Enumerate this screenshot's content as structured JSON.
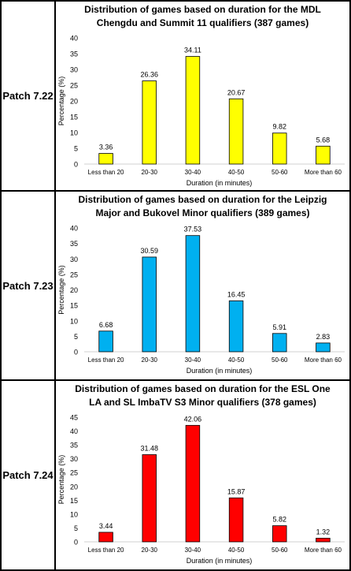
{
  "rows": [
    {
      "patch_label": "Patch 7.22",
      "chart_data": {
        "type": "bar",
        "title_line1": "Distribution of games based on duration for the MDL",
        "title_line2": "Chengdu and Summit 11 qualifiers (387 games)",
        "xlabel": "Duration (in minutes)",
        "ylabel": "Percentage (%)",
        "categories": [
          "Less than 20",
          "20-30",
          "30-40",
          "40-50",
          "50-60",
          "More than 60"
        ],
        "values": [
          3.36,
          26.36,
          34.11,
          20.67,
          9.82,
          5.68
        ],
        "value_labels": [
          "3.36",
          "26.36",
          "34.11",
          "20.67",
          "9.82",
          "5.68"
        ],
        "ylim": [
          0,
          40
        ],
        "yticks": [
          "0",
          "5",
          "10",
          "15",
          "20",
          "25",
          "30",
          "35",
          "40"
        ],
        "grid": false,
        "legend": "none",
        "bar_color": "#ffff00"
      }
    },
    {
      "patch_label": "Patch 7.23",
      "chart_data": {
        "type": "bar",
        "title_line1": "Distribution of games based on duration for the Leipzig",
        "title_line2": "Major and Bukovel Minor qualifiers (389 games)",
        "xlabel": "Duration (in minutes)",
        "ylabel": "Percentage (%)",
        "categories": [
          "Less than 20",
          "20-30",
          "30-40",
          "40-50",
          "50-60",
          "More than 60"
        ],
        "values": [
          6.68,
          30.59,
          37.53,
          16.45,
          5.91,
          2.83
        ],
        "value_labels": [
          "6.68",
          "30.59",
          "37.53",
          "16.45",
          "5.91",
          "2.83"
        ],
        "ylim": [
          0,
          40
        ],
        "yticks": [
          "0",
          "5",
          "10",
          "15",
          "20",
          "25",
          "30",
          "35",
          "40"
        ],
        "grid": false,
        "legend": "none",
        "bar_color": "#00b0f0"
      }
    },
    {
      "patch_label": "Patch 7.24",
      "chart_data": {
        "type": "bar",
        "title_line1": "Distribution of games based on duration for the ESL One",
        "title_line2": "LA and SL ImbaTV S3 Minor qualifiers (378 games)",
        "xlabel": "Duration (in minutes)",
        "ylabel": "Percentage (%)",
        "categories": [
          "Less than 20",
          "20-30",
          "30-40",
          "40-50",
          "50-60",
          "More than 60"
        ],
        "values": [
          3.44,
          31.48,
          42.06,
          15.87,
          5.82,
          1.32
        ],
        "value_labels": [
          "3.44",
          "31.48",
          "42.06",
          "15.87",
          "5.82",
          "1.32"
        ],
        "ylim": [
          0,
          45
        ],
        "yticks": [
          "0",
          "5",
          "10",
          "15",
          "20",
          "25",
          "30",
          "35",
          "40",
          "45"
        ],
        "grid": false,
        "legend": "none",
        "bar_color": "#ff0000"
      }
    }
  ]
}
